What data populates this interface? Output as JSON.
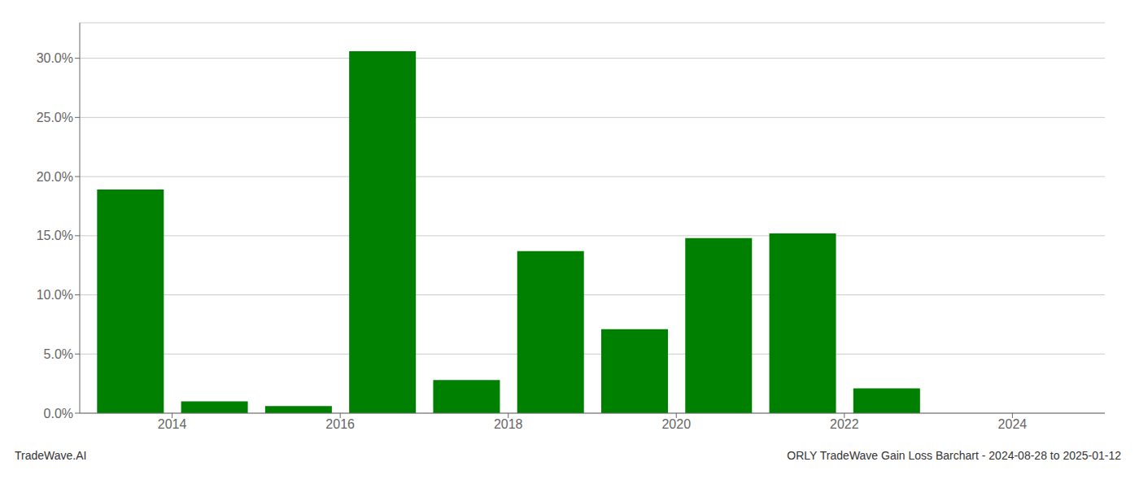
{
  "chart_data": {
    "type": "bar",
    "x": [
      2013,
      2014,
      2015,
      2016,
      2017,
      2018,
      2019,
      2020,
      2021,
      2022,
      2023,
      2024
    ],
    "values": [
      0.189,
      0.01,
      0.006,
      0.306,
      0.028,
      0.137,
      0.071,
      0.148,
      0.152,
      0.021,
      0.0,
      0.0
    ],
    "color": "#008000",
    "xlim": [
      2012.4,
      2024.6
    ],
    "xticks": [
      {
        "value": 2013.5,
        "label": "2014"
      },
      {
        "value": 2015.5,
        "label": "2016"
      },
      {
        "value": 2017.5,
        "label": "2018"
      },
      {
        "value": 2019.5,
        "label": "2020"
      },
      {
        "value": 2021.5,
        "label": "2022"
      },
      {
        "value": 2023.5,
        "label": "2024"
      }
    ],
    "ylim": [
      0,
      0.33
    ],
    "yticks": [
      {
        "value": 0.0,
        "label": "0.0%"
      },
      {
        "value": 0.05,
        "label": "5.0%"
      },
      {
        "value": 0.1,
        "label": "10.0%"
      },
      {
        "value": 0.15,
        "label": "15.0%"
      },
      {
        "value": 0.2,
        "label": "20.0%"
      },
      {
        "value": 0.25,
        "label": "25.0%"
      },
      {
        "value": 0.3,
        "label": "30.0%"
      }
    ],
    "grid": true,
    "annotations": [
      "TradeWave.AI",
      "ORLY TradeWave Gain Loss Barchart - 2024-08-28 to 2025-01-12"
    ]
  }
}
